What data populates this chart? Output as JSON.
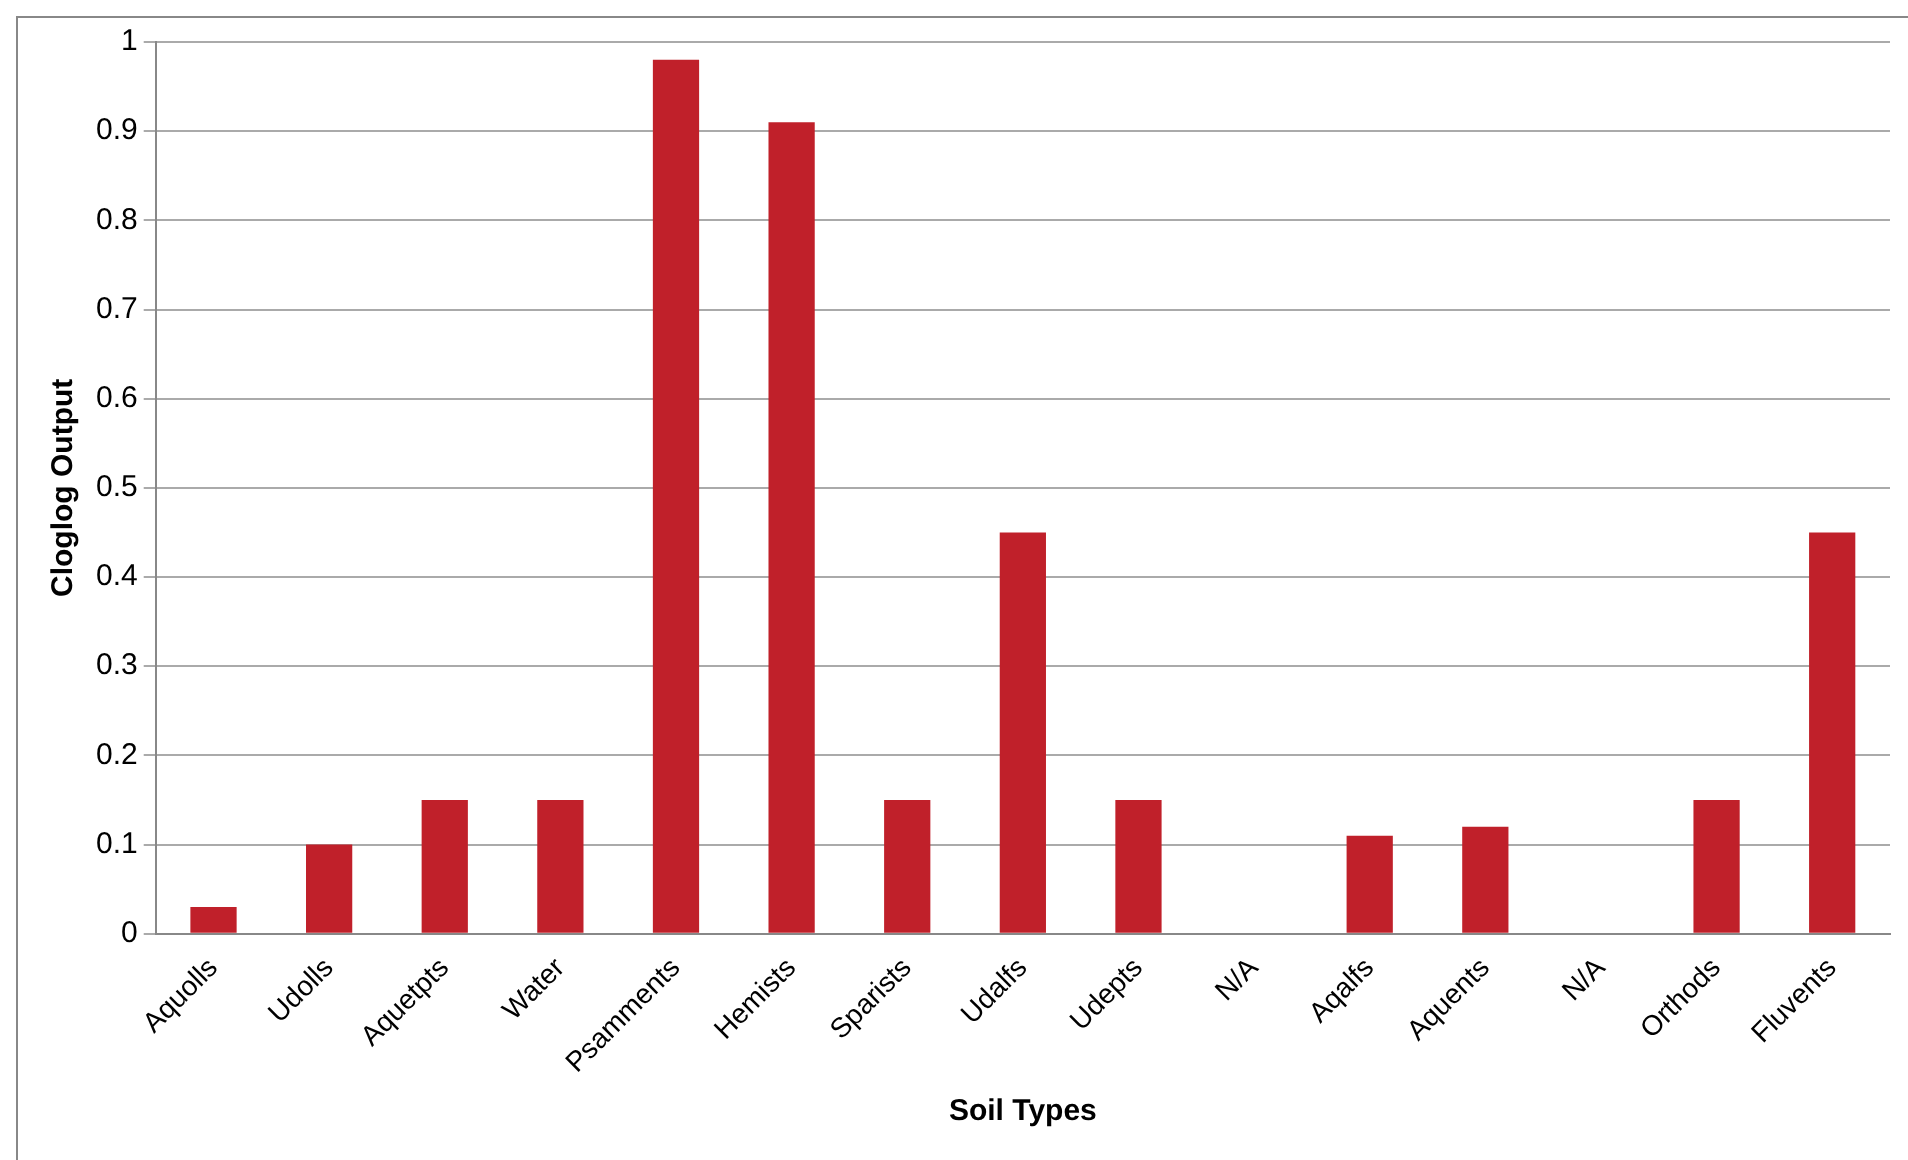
{
  "chart_data": {
    "type": "bar",
    "xlabel": "Soil Types",
    "ylabel": "Cloglog Output",
    "categories": [
      "Aquolls",
      "Udolls",
      "Aquetpts",
      "Water",
      "Psamments",
      "Hemists",
      "Sparists",
      "Udalfs",
      "Udepts",
      "N/A",
      "Aqalfs",
      "Aquents",
      "N/A",
      "Orthods",
      "Fluvents"
    ],
    "values": [
      0.03,
      0.1,
      0.15,
      0.15,
      0.98,
      0.91,
      0.15,
      0.45,
      0.15,
      0,
      0.11,
      0.12,
      0,
      0.15,
      0.45
    ],
    "color": "#c0202a",
    "ylim": [
      0,
      1
    ],
    "yticks": [
      0,
      0.1,
      0.2,
      0.3,
      0.4,
      0.5,
      0.6,
      0.7,
      0.8,
      0.9,
      1
    ],
    "grid": "y"
  }
}
